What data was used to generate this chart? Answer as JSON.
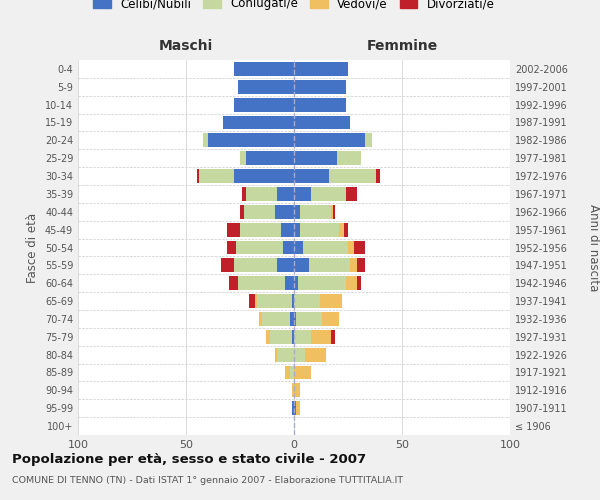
{
  "age_groups": [
    "100+",
    "95-99",
    "90-94",
    "85-89",
    "80-84",
    "75-79",
    "70-74",
    "65-69",
    "60-64",
    "55-59",
    "50-54",
    "45-49",
    "40-44",
    "35-39",
    "30-34",
    "25-29",
    "20-24",
    "15-19",
    "10-14",
    "5-9",
    "0-4"
  ],
  "birth_years": [
    "≤ 1906",
    "1907-1911",
    "1912-1916",
    "1917-1921",
    "1922-1926",
    "1927-1931",
    "1932-1936",
    "1937-1941",
    "1942-1946",
    "1947-1951",
    "1952-1956",
    "1957-1961",
    "1962-1966",
    "1967-1971",
    "1972-1976",
    "1977-1981",
    "1982-1986",
    "1987-1991",
    "1992-1996",
    "1997-2001",
    "2002-2006"
  ],
  "males": {
    "celibi": [
      0,
      1,
      0,
      0,
      0,
      1,
      2,
      1,
      4,
      8,
      5,
      6,
      9,
      8,
      28,
      22,
      40,
      33,
      28,
      26,
      28
    ],
    "coniugati": [
      0,
      0,
      0,
      2,
      8,
      10,
      13,
      16,
      22,
      20,
      22,
      19,
      14,
      14,
      16,
      3,
      2,
      0,
      0,
      0,
      0
    ],
    "vedovi": [
      0,
      0,
      1,
      2,
      1,
      2,
      1,
      1,
      0,
      0,
      0,
      0,
      0,
      0,
      0,
      0,
      0,
      0,
      0,
      0,
      0
    ],
    "divorziati": [
      0,
      0,
      0,
      0,
      0,
      0,
      0,
      3,
      4,
      6,
      4,
      6,
      2,
      2,
      1,
      0,
      0,
      0,
      0,
      0,
      0
    ]
  },
  "females": {
    "nubili": [
      0,
      1,
      0,
      0,
      0,
      0,
      1,
      0,
      2,
      7,
      4,
      3,
      3,
      8,
      16,
      20,
      33,
      26,
      24,
      24,
      25
    ],
    "coniugate": [
      0,
      0,
      0,
      0,
      5,
      8,
      12,
      12,
      22,
      19,
      21,
      18,
      14,
      16,
      22,
      11,
      3,
      0,
      0,
      0,
      0
    ],
    "vedove": [
      0,
      2,
      3,
      8,
      10,
      9,
      8,
      10,
      5,
      3,
      3,
      2,
      1,
      0,
      0,
      0,
      0,
      0,
      0,
      0,
      0
    ],
    "divorziate": [
      0,
      0,
      0,
      0,
      0,
      2,
      0,
      0,
      2,
      4,
      5,
      2,
      1,
      5,
      2,
      0,
      0,
      0,
      0,
      0,
      0
    ]
  },
  "colors": {
    "celibi": "#4472c4",
    "coniugati": "#c5d8a0",
    "vedovi": "#f0c060",
    "divorziati": "#c0202a"
  },
  "title": "Popolazione per età, sesso e stato civile - 2007",
  "subtitle": "COMUNE DI TENNO (TN) - Dati ISTAT 1° gennaio 2007 - Elaborazione TUTTITALIA.IT",
  "xlabel_left": "Maschi",
  "xlabel_right": "Femmine",
  "ylabel_left": "Fasce di età",
  "ylabel_right": "Anni di nascita",
  "xlim": 100,
  "legend_labels": [
    "Celibi/Nubili",
    "Coniugati/e",
    "Vedovi/e",
    "Divorziati/e"
  ],
  "bg_color": "#f0f0f0",
  "plot_bg": "#ffffff"
}
